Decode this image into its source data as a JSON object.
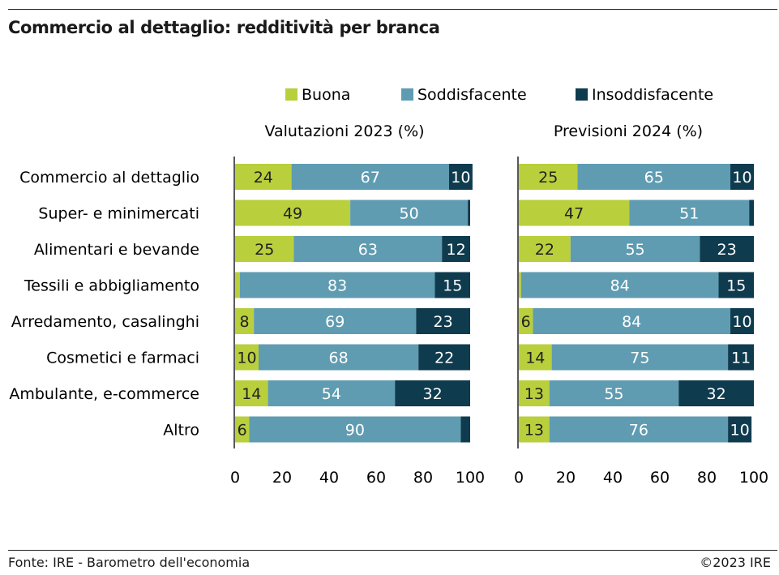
{
  "title": "Commercio al dettaglio: redditività per branca",
  "footer": {
    "source": "Fonte: IRE - Barometro dell'economia",
    "copyright": "©2023 IRE"
  },
  "colors": {
    "buona": "#b9cf3c",
    "soddisfacente": "#5f9cb2",
    "insoddisfacente": "#0f3b4f"
  },
  "chart_data": {
    "type": "bar",
    "orientation": "horizontal",
    "stacked": true,
    "legend_position": "top",
    "categories": [
      "Commercio al dettaglio",
      "Super- e minimercati",
      "Alimentari e bevande",
      "Tessili e abbigliamento",
      "Arredamento, casalinghi",
      "Cosmetici e farmaci",
      "Ambulante, e-commerce",
      "Altro"
    ],
    "legend": [
      "Buona",
      "Soddisfacente",
      "Insoddisfacente"
    ],
    "xlim": [
      0,
      100
    ],
    "xticks": [
      "0",
      "20",
      "40",
      "60",
      "80",
      "100"
    ],
    "panels": [
      {
        "title": "Valutazioni 2023 (%)",
        "series": [
          {
            "name": "Buona",
            "values": [
              24,
              49,
              25,
              2,
              8,
              10,
              14,
              6
            ]
          },
          {
            "name": "Soddisfacente",
            "values": [
              67,
              50,
              63,
              83,
              69,
              68,
              54,
              90
            ]
          },
          {
            "name": "Insoddisfacente",
            "values": [
              10,
              1,
              12,
              15,
              23,
              22,
              32,
              4
            ]
          }
        ],
        "labels": [
          [
            "24",
            "67",
            "10"
          ],
          [
            "49",
            "50",
            ""
          ],
          [
            "25",
            "63",
            "12"
          ],
          [
            "",
            "83",
            "15"
          ],
          [
            "8",
            "69",
            "23"
          ],
          [
            "10",
            "68",
            "22"
          ],
          [
            "14",
            "54",
            "32"
          ],
          [
            "6",
            "90",
            ""
          ]
        ]
      },
      {
        "title": "Previsioni 2024 (%)",
        "series": [
          {
            "name": "Buona",
            "values": [
              25,
              47,
              22,
              1,
              6,
              14,
              13,
              13
            ]
          },
          {
            "name": "Soddisfacente",
            "values": [
              65,
              51,
              55,
              84,
              84,
              75,
              55,
              76
            ]
          },
          {
            "name": "Insoddisfacente",
            "values": [
              10,
              2,
              23,
              15,
              10,
              11,
              32,
              10
            ]
          }
        ],
        "labels": [
          [
            "25",
            "65",
            "10"
          ],
          [
            "47",
            "51",
            ""
          ],
          [
            "22",
            "55",
            "23"
          ],
          [
            "",
            "84",
            "15"
          ],
          [
            "6",
            "84",
            "10"
          ],
          [
            "14",
            "75",
            "11"
          ],
          [
            "13",
            "55",
            "32"
          ],
          [
            "13",
            "76",
            "10"
          ]
        ]
      }
    ]
  }
}
